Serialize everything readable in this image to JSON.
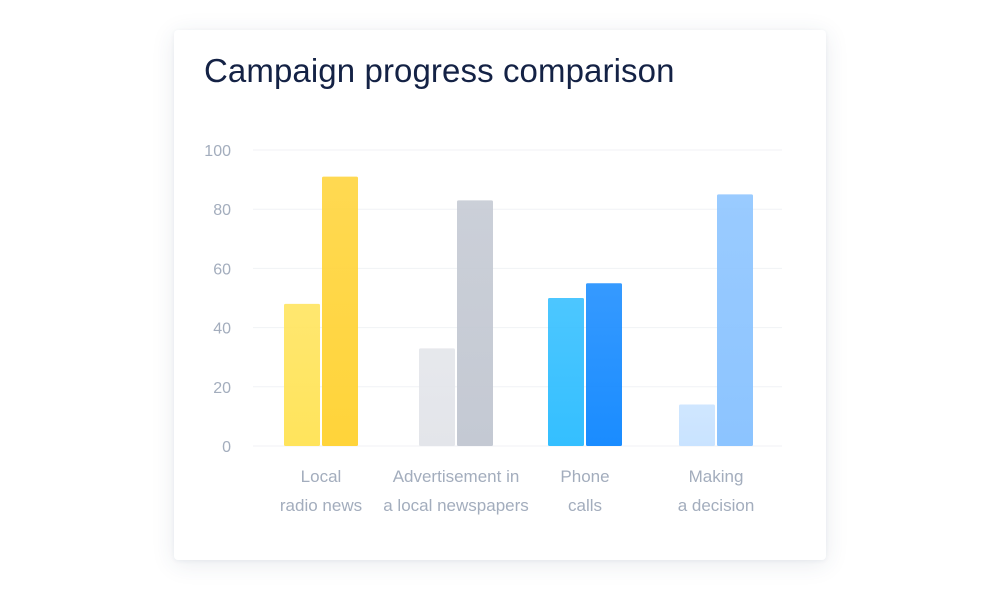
{
  "chart_data": {
    "type": "bar",
    "title": "Campaign progress comparison",
    "xlabel": "",
    "ylabel": "",
    "ylim": [
      0,
      100
    ],
    "yticks": [
      "0",
      "20",
      "40",
      "60",
      "80",
      "100"
    ],
    "grid": true,
    "legend": "none",
    "categories": [
      [
        "Local",
        "radio news"
      ],
      [
        "Advertisement in",
        "a local newspapers"
      ],
      [
        "Phone",
        "calls"
      ],
      [
        "Making",
        "a decision"
      ]
    ],
    "values": [
      [
        48,
        91
      ],
      [
        33,
        83
      ],
      [
        50,
        55
      ],
      [
        14,
        85
      ]
    ],
    "colors": [
      [
        "#ffe45c",
        "#ffd43a"
      ],
      [
        "#e3e5ea",
        "#c4c9d3"
      ],
      [
        "#34bfff",
        "#1a8cff"
      ],
      [
        "#c9e3ff",
        "#8cc4ff"
      ]
    ],
    "gridline_color": "#f0f2f5"
  }
}
